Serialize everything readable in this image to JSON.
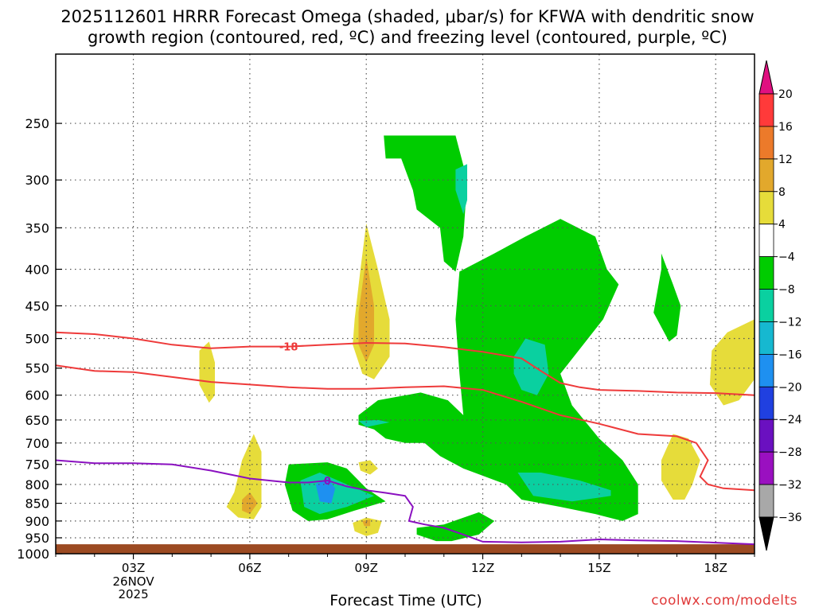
{
  "title": {
    "line1": "2025112601 HRRR Forecast Omega (shaded, μbar/s) for KFWA with dendritic snow",
    "line2": "growth region (contoured, red, ºC) and freezing level (contoured, purple, ºC)"
  },
  "credit": "coolwx.com/modelts",
  "colors": {
    "ground": "#9c4a22",
    "dgz_contour": "#ee3a3a",
    "freezing_contour": "#8a10c0",
    "grid": "#555555"
  },
  "chart_data": {
    "type": "contour",
    "xlabel": "Forecast Time (UTC)",
    "ylabel": "",
    "x_ticks": [
      {
        "hour": 3,
        "label": "03Z"
      },
      {
        "hour": 6,
        "label": "06Z"
      },
      {
        "hour": 9,
        "label": "09Z"
      },
      {
        "hour": 12,
        "label": "12Z"
      },
      {
        "hour": 15,
        "label": "15Z"
      },
      {
        "hour": 18,
        "label": "18Z"
      }
    ],
    "date_label": [
      "26NOV",
      "2025"
    ],
    "xlim": [
      1,
      19
    ],
    "y_ticks": [
      250,
      300,
      350,
      400,
      450,
      500,
      550,
      600,
      650,
      700,
      750,
      800,
      850,
      900,
      950,
      1000
    ],
    "ylim": [
      1000,
      200
    ],
    "y_scale": "log-pressure",
    "grid": true,
    "ground_level_hpa": 970,
    "colorbar": {
      "levels": [
        20,
        16,
        12,
        8,
        4,
        -4,
        -8,
        -12,
        -16,
        -20,
        -24,
        -28,
        -32,
        -36
      ],
      "colors": [
        "#ff3a3a",
        "#ec7a2a",
        "#e2a82c",
        "#e6dc3a",
        "#ffffff",
        "#00cc00",
        "#0ad0a0",
        "#16b8d0",
        "#1e90f0",
        "#2040e0",
        "#6a10c0",
        "#9a10c0",
        "#a8a8a8"
      ],
      "top_cap_color": "#e01080",
      "bottom_cap_color": "#000000"
    },
    "contour_lines": [
      {
        "label": "-18",
        "color": "#ee3a3a",
        "points": [
          [
            1,
            490
          ],
          [
            2,
            493
          ],
          [
            3,
            500
          ],
          [
            4,
            510
          ],
          [
            5,
            516
          ],
          [
            6,
            513
          ],
          [
            7,
            513
          ],
          [
            8,
            510
          ],
          [
            9,
            507
          ],
          [
            10,
            508
          ],
          [
            11,
            514
          ],
          [
            12,
            522
          ],
          [
            13,
            533
          ],
          [
            13.5,
            555
          ],
          [
            14,
            577
          ],
          [
            14.5,
            585
          ],
          [
            15,
            590
          ],
          [
            16,
            592
          ],
          [
            17,
            595
          ],
          [
            18,
            596
          ],
          [
            19,
            600
          ]
        ]
      },
      {
        "label": "",
        "color": "#ee3a3a",
        "points": [
          [
            1,
            545
          ],
          [
            2,
            555
          ],
          [
            3,
            557
          ],
          [
            4,
            566
          ],
          [
            5,
            575
          ],
          [
            6,
            580
          ],
          [
            7,
            585
          ],
          [
            8,
            588
          ],
          [
            9,
            588
          ],
          [
            10,
            585
          ],
          [
            11,
            583
          ],
          [
            12,
            590
          ],
          [
            13,
            613
          ],
          [
            14,
            640
          ],
          [
            15,
            658
          ],
          [
            16,
            680
          ],
          [
            17,
            685
          ],
          [
            17.5,
            700
          ],
          [
            17.8,
            740
          ],
          [
            17.6,
            780
          ],
          [
            17.8,
            800
          ],
          [
            18.2,
            810
          ],
          [
            19,
            815
          ]
        ]
      },
      {
        "label": "0",
        "color": "#8a10c0",
        "points": [
          [
            1,
            740
          ],
          [
            2,
            747
          ],
          [
            3,
            747
          ],
          [
            4,
            750
          ],
          [
            5,
            765
          ],
          [
            6,
            785
          ],
          [
            7,
            795
          ],
          [
            7.5,
            795
          ],
          [
            8,
            790
          ],
          [
            8.5,
            805
          ],
          [
            9,
            815
          ],
          [
            9.5,
            822
          ],
          [
            10,
            830
          ],
          [
            10.2,
            860
          ],
          [
            10.1,
            900
          ],
          [
            10.5,
            910
          ],
          [
            11,
            920
          ],
          [
            11.5,
            940
          ],
          [
            12,
            962
          ],
          [
            13,
            964
          ],
          [
            14,
            962
          ],
          [
            15,
            955
          ],
          [
            16,
            958
          ],
          [
            17,
            960
          ],
          [
            18,
            965
          ],
          [
            19,
            970
          ]
        ]
      }
    ],
    "shaded_regions": [
      {
        "level": -8,
        "color": "#00cc00",
        "points": [
          [
            9.45,
            260
          ],
          [
            11.3,
            260
          ],
          [
            11.6,
            300
          ],
          [
            11.5,
            360
          ],
          [
            11.3,
            403
          ],
          [
            11.0,
            390
          ],
          [
            10.9,
            350
          ],
          [
            10.3,
            330
          ],
          [
            10.2,
            310
          ],
          [
            9.9,
            280
          ],
          [
            9.5,
            280
          ]
        ]
      },
      {
        "level": -8,
        "color": "#00cc00",
        "points": [
          [
            11.4,
            403
          ],
          [
            12.3,
            380
          ],
          [
            13.1,
            360
          ],
          [
            14.0,
            340
          ],
          [
            14.9,
            360
          ],
          [
            15.2,
            400
          ],
          [
            15.5,
            420
          ],
          [
            15.1,
            470
          ],
          [
            14.0,
            560
          ],
          [
            14.3,
            620
          ],
          [
            15.0,
            690
          ],
          [
            15.6,
            740
          ],
          [
            16.0,
            800
          ],
          [
            16.0,
            880
          ],
          [
            15.6,
            900
          ],
          [
            14.9,
            880
          ],
          [
            14.0,
            860
          ],
          [
            13.0,
            840
          ],
          [
            12.6,
            800
          ],
          [
            11.5,
            760
          ],
          [
            10.9,
            730
          ],
          [
            10.5,
            700
          ],
          [
            10.0,
            700
          ],
          [
            9.5,
            690
          ],
          [
            9.2,
            670
          ],
          [
            8.8,
            660
          ],
          [
            8.8,
            640
          ],
          [
            9.3,
            610
          ],
          [
            10.4,
            595
          ],
          [
            11.1,
            610
          ],
          [
            11.5,
            640
          ],
          [
            11.4,
            560
          ],
          [
            11.3,
            470
          ]
        ]
      },
      {
        "level": -8,
        "color": "#00cc00",
        "points": [
          [
            10.3,
            920
          ],
          [
            11.0,
            910
          ],
          [
            11.9,
            875
          ],
          [
            12.3,
            900
          ],
          [
            11.9,
            940
          ],
          [
            11.2,
            960
          ],
          [
            10.8,
            960
          ],
          [
            10.3,
            940
          ]
        ]
      },
      {
        "level": -8,
        "color": "#00cc00",
        "points": [
          [
            7.0,
            750
          ],
          [
            8.0,
            745
          ],
          [
            8.5,
            760
          ],
          [
            9.0,
            810
          ],
          [
            9.5,
            845
          ],
          [
            8.7,
            870
          ],
          [
            8.0,
            895
          ],
          [
            7.5,
            900
          ],
          [
            7.1,
            870
          ],
          [
            6.9,
            800
          ]
        ]
      },
      {
        "level": -8,
        "color": "#00cc00",
        "points": [
          [
            16.6,
            380
          ],
          [
            16.9,
            420
          ],
          [
            17.1,
            450
          ],
          [
            17.0,
            495
          ],
          [
            16.8,
            505
          ],
          [
            16.4,
            460
          ],
          [
            16.6,
            400
          ]
        ]
      },
      {
        "level": -12,
        "color": "#0ad0a0",
        "points": [
          [
            11.3,
            290
          ],
          [
            11.6,
            285
          ],
          [
            11.6,
            320
          ],
          [
            11.5,
            335
          ],
          [
            11.3,
            310
          ]
        ]
      },
      {
        "level": -12,
        "color": "#0ad0a0",
        "points": [
          [
            12.8,
            530
          ],
          [
            13.1,
            500
          ],
          [
            13.6,
            510
          ],
          [
            13.7,
            560
          ],
          [
            13.4,
            600
          ],
          [
            13.0,
            590
          ],
          [
            12.8,
            560
          ]
        ]
      },
      {
        "level": -12,
        "color": "#0ad0a0",
        "points": [
          [
            8.8,
            652
          ],
          [
            9.3,
            650
          ],
          [
            9.6,
            655
          ],
          [
            9.0,
            665
          ]
        ]
      },
      {
        "level": -12,
        "color": "#0ad0a0",
        "points": [
          [
            12.9,
            770
          ],
          [
            13.5,
            770
          ],
          [
            14.5,
            790
          ],
          [
            15.3,
            815
          ],
          [
            15.3,
            830
          ],
          [
            14.3,
            845
          ],
          [
            13.3,
            830
          ]
        ]
      },
      {
        "level": -12,
        "color": "#0ad0a0",
        "points": [
          [
            7.3,
            790
          ],
          [
            7.8,
            770
          ],
          [
            8.5,
            800
          ],
          [
            9.2,
            830
          ],
          [
            8.5,
            860
          ],
          [
            7.8,
            880
          ],
          [
            7.4,
            860
          ]
        ]
      },
      {
        "level": -16,
        "color": "#1e90f0",
        "points": [
          [
            7.7,
            800
          ],
          [
            8.0,
            785
          ],
          [
            8.2,
            810
          ],
          [
            8.1,
            850
          ],
          [
            7.8,
            845
          ]
        ]
      },
      {
        "level": 4,
        "color": "#e6dc3a",
        "points": [
          [
            8.7,
            470
          ],
          [
            8.85,
            400
          ],
          [
            9.0,
            345
          ],
          [
            9.3,
            400
          ],
          [
            9.6,
            470
          ],
          [
            9.6,
            530
          ],
          [
            9.2,
            570
          ],
          [
            8.9,
            560
          ],
          [
            8.65,
            510
          ]
        ]
      },
      {
        "level": 8,
        "color": "#e2a82c",
        "points": [
          [
            8.8,
            460
          ],
          [
            9.0,
            385
          ],
          [
            9.2,
            450
          ],
          [
            9.2,
            510
          ],
          [
            9.0,
            540
          ],
          [
            8.8,
            510
          ]
        ]
      },
      {
        "level": 4,
        "color": "#e6dc3a",
        "points": [
          [
            4.7,
            520
          ],
          [
            4.95,
            505
          ],
          [
            5.1,
            540
          ],
          [
            5.1,
            600
          ],
          [
            4.95,
            615
          ],
          [
            4.7,
            580
          ]
        ]
      },
      {
        "level": 4,
        "color": "#e6dc3a",
        "points": [
          [
            5.6,
            820
          ],
          [
            5.8,
            740
          ],
          [
            6.1,
            680
          ],
          [
            6.3,
            720
          ],
          [
            6.3,
            860
          ],
          [
            6.1,
            895
          ],
          [
            5.7,
            890
          ],
          [
            5.4,
            860
          ]
        ]
      },
      {
        "level": 8,
        "color": "#e2a82c",
        "points": [
          [
            5.8,
            840
          ],
          [
            6.0,
            820
          ],
          [
            6.2,
            850
          ],
          [
            6.0,
            880
          ],
          [
            5.8,
            870
          ]
        ]
      },
      {
        "level": 4,
        "color": "#e6dc3a",
        "points": [
          [
            8.8,
            745
          ],
          [
            9.1,
            740
          ],
          [
            9.3,
            760
          ],
          [
            9.1,
            775
          ],
          [
            8.85,
            765
          ]
        ]
      },
      {
        "level": 4,
        "color": "#e6dc3a",
        "points": [
          [
            8.65,
            905
          ],
          [
            9.0,
            890
          ],
          [
            9.4,
            900
          ],
          [
            9.3,
            935
          ],
          [
            9.0,
            945
          ],
          [
            8.7,
            930
          ]
        ]
      },
      {
        "level": 8,
        "color": "#e2a82c",
        "points": [
          [
            8.9,
            900
          ],
          [
            9.1,
            895
          ],
          [
            9.1,
            915
          ],
          [
            8.95,
            915
          ]
        ]
      },
      {
        "level": 4,
        "color": "#e6dc3a",
        "points": [
          [
            16.6,
            740
          ],
          [
            16.9,
            680
          ],
          [
            17.3,
            690
          ],
          [
            17.6,
            740
          ],
          [
            17.4,
            800
          ],
          [
            17.2,
            840
          ],
          [
            16.9,
            840
          ],
          [
            16.6,
            790
          ]
        ]
      },
      {
        "level": 4,
        "color": "#e6dc3a",
        "points": [
          [
            17.9,
            520
          ],
          [
            18.3,
            490
          ],
          [
            19.0,
            470
          ],
          [
            19.0,
            570
          ],
          [
            18.6,
            610
          ],
          [
            18.2,
            620
          ],
          [
            17.85,
            580
          ]
        ]
      }
    ]
  }
}
